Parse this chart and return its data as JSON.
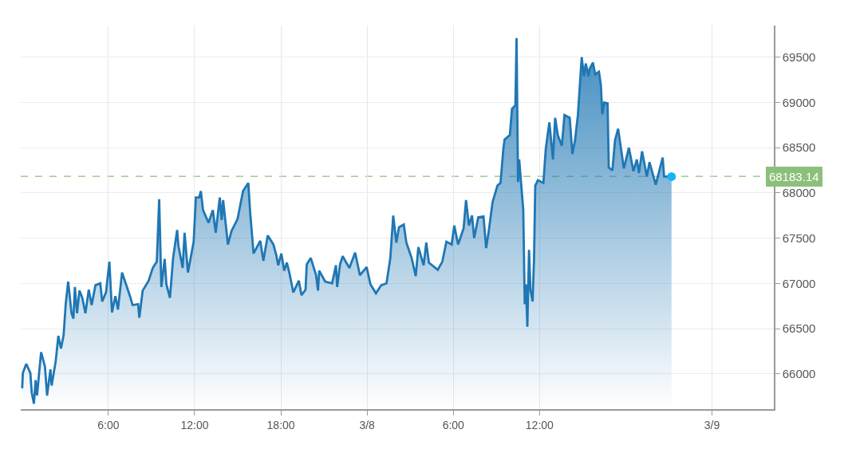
{
  "chart_data": {
    "type": "area",
    "x": [
      "--03-07T00:00",
      "--03-07T00:03",
      "--03-07T00:17",
      "--03-07T00:34",
      "--03-07T00:40",
      "--03-07T00:49",
      "--03-07T00:56",
      "--03-07T01:02",
      "--03-07T01:19",
      "--03-07T01:35",
      "--03-07T01:44",
      "--03-07T01:58",
      "--03-07T02:03",
      "--03-07T02:20",
      "--03-07T02:31",
      "--03-07T02:42",
      "--03-07T02:53",
      "--03-07T03:02",
      "--03-07T03:12",
      "--03-07T03:26",
      "--03-07T03:34",
      "--03-07T03:40",
      "--03-07T03:49",
      "--03-07T03:59",
      "--03-07T04:11",
      "--03-07T04:24",
      "--03-07T04:38",
      "--03-07T04:50",
      "--03-07T05:06",
      "--03-07T05:26",
      "--03-07T05:34",
      "--03-07T05:50",
      "--03-07T06:04",
      "--03-07T06:15",
      "--03-07T06:29",
      "--03-07T06:40",
      "--03-07T06:57",
      "--03-07T07:30",
      "--03-07T07:41",
      "--03-07T08:04",
      "--03-07T08:09",
      "--03-07T08:23",
      "--03-07T08:48",
      "--03-07T09:05",
      "--03-07T09:22",
      "--03-07T09:32",
      "--03-07T09:41",
      "--03-07T09:55",
      "--03-07T10:02",
      "--03-07T10:17",
      "--03-07T10:30",
      "--03-07T10:47",
      "--03-07T10:52",
      "--03-07T11:10",
      "--03-07T11:18",
      "--03-07T11:32",
      "--03-07T11:56",
      "--03-07T12:05",
      "--03-07T12:19",
      "--03-07T12:26",
      "--03-07T12:35",
      "--03-07T12:58",
      "--03-07T13:16",
      "--03-07T13:28",
      "--03-07T13:45",
      "--03-07T13:53",
      "--03-07T13:59",
      "--03-07T14:19",
      "--03-07T14:34",
      "--03-07T14:59",
      "--03-07T15:22",
      "--03-07T15:44",
      "--03-07T15:52",
      "--03-07T16:06",
      "--03-07T16:34",
      "--03-07T16:47",
      "--03-07T17:05",
      "--03-07T17:29",
      "--03-07T17:41",
      "--03-07T17:49",
      "--03-07T18:02",
      "--03-07T18:14",
      "--03-07T18:25",
      "--03-07T18:36",
      "--03-07T18:52",
      "--03-07T19:15",
      "--03-07T19:26",
      "--03-07T19:43",
      "--03-07T19:48",
      "--03-07T20:05",
      "--03-07T20:27",
      "--03-07T20:35",
      "--03-07T20:40",
      "--03-07T21:05",
      "--03-07T21:34",
      "--03-07T21:50",
      "--03-07T21:55",
      "--03-07T22:07",
      "--03-07T22:18",
      "--03-07T22:46",
      "--03-07T23:10",
      "--03-07T23:30",
      "--03-07T23:58",
      "--03-08T00:14",
      "--03-08T00:37",
      "--03-08T00:59",
      "--03-08T01:21",
      "--03-08T01:37",
      "--03-08T01:49",
      "--03-08T02:02",
      "--03-08T02:13",
      "--03-08T02:33",
      "--03-08T02:44",
      "--03-08T03:06",
      "--03-08T03:23",
      "--03-08T03:34",
      "--03-08T03:56",
      "--03-08T04:07",
      "--03-08T04:18",
      "--03-08T04:55",
      "--03-08T05:14",
      "--03-08T05:31",
      "--03-08T05:53",
      "--03-08T06:04",
      "--03-08T06:20",
      "--03-08T06:43",
      "--03-08T06:53",
      "--03-08T07:05",
      "--03-08T07:18",
      "--03-08T07:27",
      "--03-08T07:44",
      "--03-08T08:06",
      "--03-08T08:17",
      "--03-08T08:28",
      "--03-08T08:44",
      "--03-08T09:04",
      "--03-08T09:17",
      "--03-08T09:29",
      "--03-08T09:34",
      "--03-08T09:56",
      "--03-08T10:05",
      "--03-08T10:19",
      "--03-08T10:24",
      "--03-08T10:30",
      "--03-08T10:35",
      "--03-08T10:52",
      "--03-08T10:58",
      "--03-08T11:03",
      "--03-08T11:09",
      "--03-08T11:16",
      "--03-08T11:22",
      "--03-08T11:31",
      "--03-08T11:37",
      "--03-08T11:42",
      "--03-08T11:53",
      "--03-08T12:16",
      "--03-08T12:26",
      "--03-08T12:41",
      "--03-08T12:56",
      "--03-08T13:05",
      "--03-08T13:16",
      "--03-08T13:33",
      "--03-08T13:44",
      "--03-08T14:06",
      "--03-08T14:17",
      "--03-08T14:28",
      "--03-08T14:40",
      "--03-08T14:56",
      "--03-08T15:05",
      "--03-08T15:13",
      "--03-08T15:24",
      "--03-08T15:29",
      "--03-08T15:43",
      "--03-08T15:52",
      "--03-08T16:08",
      "--03-08T16:16",
      "--03-08T16:22",
      "--03-08T16:30",
      "--03-08T16:44",
      "--03-08T16:49",
      "--03-08T17:04",
      "--03-08T17:15",
      "--03-08T17:28",
      "--03-08T17:52",
      "--03-08T18:13",
      "--03-08T18:32",
      "--03-08T18:46",
      "--03-08T18:55",
      "--03-08T19:08",
      "--03-08T19:28",
      "--03-08T19:39",
      "--03-08T20:05",
      "--03-08T20:34",
      "--03-08T20:40",
      "--03-08T21:11"
    ],
    "series": [
      {
        "color": "#1f77b4",
        "values": [
          65840,
          66010,
          66110,
          66010,
          65790,
          65670,
          65930,
          65760,
          66240,
          66080,
          65760,
          66050,
          65870,
          66140,
          66420,
          66280,
          66430,
          66780,
          67020,
          66670,
          66610,
          66960,
          66670,
          66920,
          66840,
          66670,
          66930,
          66760,
          66980,
          67000,
          66800,
          66900,
          67240,
          66680,
          66860,
          66710,
          67120,
          66860,
          66760,
          66770,
          66620,
          66920,
          67030,
          67170,
          67240,
          67930,
          66960,
          67270,
          66990,
          66840,
          67280,
          67590,
          67420,
          67170,
          67560,
          67120,
          67460,
          67950,
          67950,
          68020,
          67810,
          67670,
          67810,
          67560,
          67950,
          67700,
          67920,
          67430,
          67580,
          67710,
          68020,
          68110,
          67780,
          67330,
          67470,
          67250,
          67530,
          67430,
          67310,
          67200,
          67330,
          67140,
          67230,
          67110,
          66900,
          67030,
          66870,
          66930,
          67210,
          67280,
          67090,
          66920,
          67140,
          67020,
          67000,
          67200,
          66960,
          67210,
          67300,
          67170,
          67340,
          67090,
          67180,
          66990,
          66890,
          66980,
          67000,
          67280,
          67750,
          67450,
          67620,
          67650,
          67450,
          67280,
          67080,
          67400,
          67200,
          67450,
          67230,
          67150,
          67240,
          67460,
          67430,
          67640,
          67430,
          67610,
          67920,
          67640,
          67750,
          67500,
          67730,
          67740,
          67390,
          67580,
          67900,
          68080,
          68110,
          68490,
          68590,
          68640,
          68930,
          68970,
          69710,
          68120,
          68370,
          67810,
          66770,
          66990,
          66520,
          67370,
          66930,
          66800,
          67280,
          68080,
          68140,
          68110,
          68490,
          68780,
          68370,
          68830,
          68640,
          68520,
          68860,
          68830,
          68430,
          68580,
          68860,
          69500,
          69290,
          69430,
          69290,
          69370,
          69440,
          69310,
          69340,
          69190,
          68870,
          69000,
          68990,
          68280,
          68250,
          68580,
          68710,
          68270,
          68500,
          68240,
          68370,
          68220,
          68460,
          68180,
          68340,
          68090,
          68390,
          68180,
          68180
        ]
      },
      {
        "type": "scatter",
        "marker": "circle",
        "x": [
          "--03-08T21:11"
        ],
        "color": "#1ab4f5",
        "values": [
          68180
        ]
      }
    ],
    "xlim": [
      "--03-06T23:54",
      "--03-09T04:18"
    ],
    "xticks": [
      {
        "value": "--03-07T06:00",
        "label": "6:00"
      },
      {
        "value": "--03-07T12:00",
        "label": "12:00"
      },
      {
        "value": "--03-07T18:00",
        "label": "18:00"
      },
      {
        "value": "--03-08",
        "label": "3/8"
      },
      {
        "value": "--03-08T06:00",
        "label": "6:00"
      },
      {
        "value": "--03-08T12:00",
        "label": "12:00"
      },
      {
        "value": "--03-09",
        "label": "3/9"
      }
    ],
    "ylim": [
      65610,
      69850
    ],
    "yticks": [
      66000,
      66500,
      67000,
      67500,
      68000,
      68500,
      69000,
      69500
    ],
    "grid": true,
    "legend": false,
    "marker": "none",
    "ref_lines": [
      {
        "axis": "y",
        "value": 68183.14,
        "label": "68183.14",
        "color": "#8cc07a",
        "line_style": "dashed"
      }
    ]
  }
}
